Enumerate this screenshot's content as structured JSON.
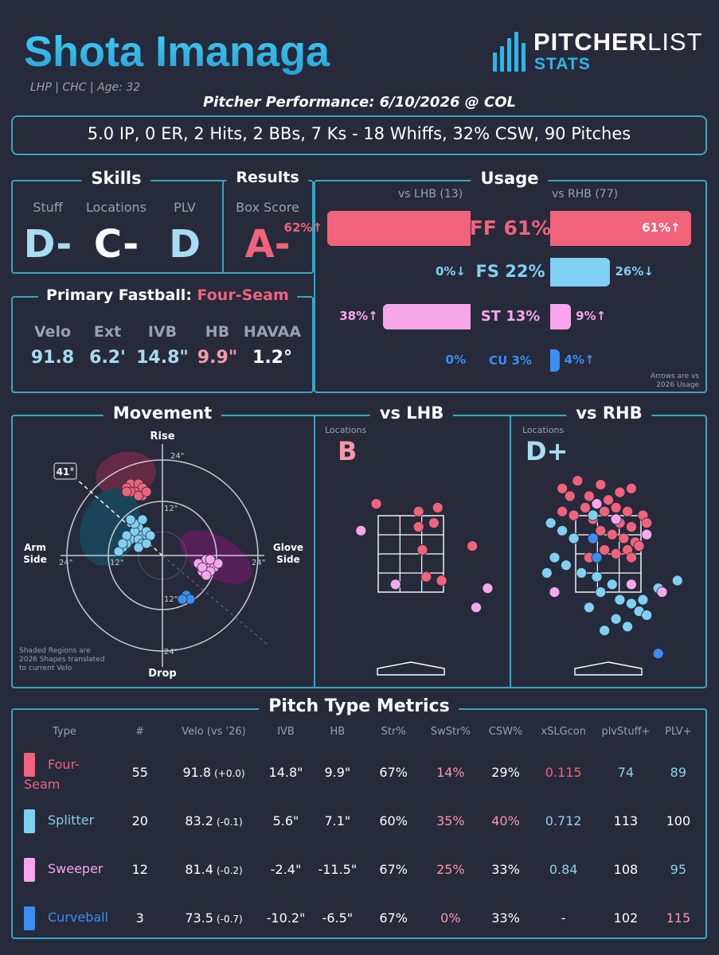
{
  "header": {
    "name": "Shota Imanaga",
    "meta": "LHP | CHC | Age: 32",
    "performance_title": "Pitcher Performance: 6/10/2026 @ COL",
    "summary": "5.0 IP, 0 ER, 2 Hits, 2 BBs, 7 Ks - 18 Whiffs, 32% CSW, 90 Pitches"
  },
  "logo": {
    "brand_a": "PITCHER",
    "brand_b": "LIST",
    "sub": "STATS"
  },
  "skills": {
    "title": "Skills",
    "labels": [
      "Stuff",
      "Locations",
      "PLV"
    ],
    "grades": [
      "D-",
      "C-",
      "D"
    ]
  },
  "results": {
    "title": "Results",
    "label": "Box Score",
    "grade": "A-"
  },
  "primary_fastball": {
    "title": "Primary Fastball:",
    "pitch": "Four-Seam",
    "labels": [
      "Velo",
      "Ext",
      "IVB",
      "HB",
      "HAVAA"
    ],
    "values": [
      "91.8",
      "6.2'",
      "14.8\"",
      "9.9\"",
      "1.2°"
    ]
  },
  "usage": {
    "title": "Usage",
    "lhb_header": "vs LHB (13)",
    "rhb_header": "vs RHB (77)",
    "note_line1": "Arrows are vs",
    "note_line2": "2026 Usage",
    "rows": [
      {
        "label": "FF 61%",
        "lhb": 62,
        "rhb": 61,
        "lhb_text": "62%↑",
        "rhb_text": "61%↑",
        "color": "#f0637a"
      },
      {
        "label": "FS 22%",
        "lhb": 0,
        "rhb": 26,
        "lhb_text": "0%↓",
        "rhb_text": "26%↓",
        "color": "#7fd0f3"
      },
      {
        "label": "ST 13%",
        "lhb": 38,
        "rhb": 9,
        "lhb_text": "38%↑",
        "rhb_text": "9%↑",
        "color": "#f7a6ec"
      },
      {
        "label": "CU 3%",
        "lhb": 0,
        "rhb": 4,
        "lhb_text": "0%",
        "rhb_text": "4%↑",
        "color": "#3a8ff0"
      }
    ]
  },
  "movement": {
    "title": "Movement",
    "rise": "Rise",
    "drop": "Drop",
    "arm_side_1": "Arm",
    "arm_side_2": "Side",
    "glove_side_1": "Glove",
    "glove_side_2": "Side",
    "angle": "41°",
    "tick_outer": "24\"",
    "tick_inner": "12\"",
    "note_1": "Shaded Regions are",
    "note_2": "2026 Shapes translated",
    "note_3": "to current Velo"
  },
  "locations": {
    "lhb_title": "vs LHB",
    "rhb_title": "vs RHB",
    "label": "Locations",
    "lhb_grade": "B",
    "rhb_grade": "D+"
  },
  "metrics": {
    "title": "Pitch Type Metrics",
    "headers": [
      "Type",
      "#",
      "Velo (vs '26)",
      "IVB",
      "HB",
      "Str%",
      "SwStr%",
      "CSW%",
      "xSLGcon",
      "plvStuff+",
      "PLV+"
    ],
    "rows": [
      {
        "type": "Four-Seam",
        "n": "55",
        "velo": "91.8",
        "velo_diff": "(+0.0)",
        "ivb": "14.8\"",
        "hb": "9.9\"",
        "str": "67%",
        "swstr": "14%",
        "csw": "29%",
        "xslg": "0.115",
        "stuff": "74",
        "plv": "89",
        "color": "#f0637a"
      },
      {
        "type": "Splitter",
        "n": "20",
        "velo": "83.2",
        "velo_diff": "(-0.1)",
        "ivb": "5.6\"",
        "hb": "7.1\"",
        "str": "60%",
        "swstr": "35%",
        "csw": "40%",
        "xslg": "0.712",
        "stuff": "113",
        "plv": "100",
        "color": "#7fd0f3"
      },
      {
        "type": "Sweeper",
        "n": "12",
        "velo": "81.4",
        "velo_diff": "(-0.2)",
        "ivb": "-2.4\"",
        "hb": "-11.5\"",
        "str": "67%",
        "swstr": "25%",
        "csw": "33%",
        "xslg": "0.84",
        "stuff": "108",
        "plv": "95",
        "color": "#f7a6ec"
      },
      {
        "type": "Curveball",
        "n": "3",
        "velo": "73.5",
        "velo_diff": "(-0.7)",
        "ivb": "-10.2\"",
        "hb": "-6.5\"",
        "str": "67%",
        "swstr": "0%",
        "csw": "33%",
        "xslg": "-",
        "stuff": "102",
        "plv": "115",
        "color": "#3a8ff0"
      }
    ]
  },
  "colors": {
    "fourseam": "#f0637a",
    "splitter": "#7fd0f3",
    "sweeper": "#f7a6ec",
    "curveball": "#3a8ff0",
    "accent": "#3aa6bd",
    "name_gradient_start": "#33c7f2"
  },
  "chart_data": [
    {
      "type": "bar",
      "title": "Usage",
      "categories": [
        "FF",
        "FS",
        "ST",
        "CU"
      ],
      "series": [
        {
          "name": "vs LHB (13)",
          "values": [
            62,
            0,
            38,
            0
          ]
        },
        {
          "name": "vs RHB (77)",
          "values": [
            61,
            26,
            9,
            4
          ]
        }
      ]
    },
    {
      "type": "scatter",
      "title": "Movement",
      "xlabel": "",
      "ylabel": "",
      "xlim": [
        -30,
        30
      ],
      "ylim": [
        -30,
        30
      ],
      "series": [
        {
          "name": "Four-Seam",
          "points": [
            [
              -6,
              16
            ],
            [
              -7,
              17
            ],
            [
              -8,
              18
            ],
            [
              -6,
              18
            ],
            [
              -5,
              17
            ],
            [
              -9,
              17
            ],
            [
              -7,
              16
            ],
            [
              -5,
              15
            ],
            [
              -8,
              16
            ],
            [
              -6,
              15
            ],
            [
              -4,
              16
            ],
            [
              -9,
              16
            ]
          ]
        },
        {
          "name": "Splitter",
          "points": [
            [
              -6,
              7
            ],
            [
              -7,
              6
            ],
            [
              -5,
              5
            ],
            [
              -8,
              4
            ],
            [
              -6,
              4
            ],
            [
              -9,
              3
            ],
            [
              -4,
              6
            ],
            [
              -7,
              8
            ],
            [
              -5,
              3
            ],
            [
              -10,
              2
            ],
            [
              -9,
              5
            ],
            [
              -6,
              2
            ],
            [
              -3,
              5
            ],
            [
              -8,
              9
            ],
            [
              -5,
              9
            ],
            [
              -11,
              1
            ],
            [
              -4,
              3
            ],
            [
              -10,
              3
            ]
          ]
        },
        {
          "name": "Sweeper",
          "points": [
            [
              10,
              -2
            ],
            [
              11,
              -3
            ],
            [
              12,
              -2
            ],
            [
              10,
              -4
            ],
            [
              13,
              -3
            ],
            [
              11,
              -1
            ],
            [
              9,
              -2
            ],
            [
              12,
              -4
            ],
            [
              14,
              -2
            ],
            [
              10,
              -3
            ],
            [
              11,
              -5
            ],
            [
              12,
              -1
            ]
          ]
        },
        {
          "name": "Curveball",
          "points": [
            [
              6,
              -10
            ],
            [
              7,
              -11
            ],
            [
              5,
              -11
            ]
          ]
        }
      ]
    },
    {
      "type": "scatter",
      "title": "vs LHB",
      "series": [
        {
          "name": "Four-Seam",
          "points": [
            [
              -0.9,
              3.8
            ],
            [
              0.2,
              3.6
            ],
            [
              0.7,
              3.7
            ],
            [
              0.6,
              3.3
            ],
            [
              0.2,
              3.2
            ],
            [
              0.3,
              2.6
            ],
            [
              1.6,
              2.7
            ],
            [
              0.4,
              1.9
            ],
            [
              0.8,
              1.8
            ]
          ]
        },
        {
          "name": "Sweeper",
          "points": [
            [
              -1.3,
              3.1
            ],
            [
              -0.4,
              1.7
            ],
            [
              2.0,
              1.6
            ],
            [
              1.7,
              1.1
            ]
          ]
        }
      ]
    },
    {
      "type": "scatter",
      "title": "vs RHB",
      "series": [
        {
          "name": "Four-Seam",
          "points": [
            [
              -1.2,
              4.2
            ],
            [
              -0.8,
              4.4
            ],
            [
              -0.2,
              4.3
            ],
            [
              0.3,
              4.1
            ],
            [
              0.6,
              4.2
            ],
            [
              -1.0,
              4.0
            ],
            [
              -0.5,
              4.0
            ],
            [
              0.0,
              3.9
            ],
            [
              -0.3,
              3.8
            ],
            [
              -0.6,
              3.7
            ],
            [
              -0.1,
              3.6
            ],
            [
              0.2,
              3.7
            ],
            [
              0.5,
              3.6
            ],
            [
              0.9,
              3.5
            ],
            [
              -1.2,
              3.6
            ],
            [
              -0.9,
              3.5
            ],
            [
              -0.4,
              3.4
            ],
            [
              0.3,
              3.3
            ],
            [
              0.6,
              3.2
            ],
            [
              1.0,
              3.3
            ],
            [
              -0.2,
              3.1
            ],
            [
              0.1,
              3.0
            ],
            [
              0.4,
              2.9
            ],
            [
              0.7,
              2.8
            ],
            [
              0.5,
              2.6
            ],
            [
              0.2,
              2.5
            ],
            [
              -0.1,
              2.6
            ],
            [
              0.8,
              2.7
            ],
            [
              0.6,
              2.4
            ],
            [
              -0.5,
              2.4
            ]
          ]
        },
        {
          "name": "Splitter",
          "points": [
            [
              -1.5,
              3.3
            ],
            [
              -1.2,
              3.1
            ],
            [
              -0.9,
              2.9
            ],
            [
              -1.4,
              2.4
            ],
            [
              -1.1,
              2.2
            ],
            [
              -1.6,
              2.0
            ],
            [
              -0.7,
              2.0
            ],
            [
              -0.3,
              1.9
            ],
            [
              0.1,
              1.7
            ],
            [
              -0.2,
              1.5
            ],
            [
              0.3,
              1.3
            ],
            [
              0.6,
              1.2
            ],
            [
              -0.5,
              1.1
            ],
            [
              0.8,
              1.0
            ],
            [
              1.0,
              0.9
            ],
            [
              0.2,
              0.8
            ],
            [
              0.5,
              0.6
            ],
            [
              -0.1,
              0.5
            ],
            [
              1.3,
              1.6
            ],
            [
              0.9,
              1.3
            ],
            [
              1.8,
              1.8
            ],
            [
              -0.4,
              3.5
            ]
          ]
        },
        {
          "name": "Sweeper",
          "points": [
            [
              -0.3,
              3.8
            ],
            [
              0.2,
              3.4
            ],
            [
              1.0,
              3.0
            ],
            [
              -1.4,
              1.5
            ],
            [
              0.6,
              1.7
            ],
            [
              1.4,
              1.5
            ]
          ]
        },
        {
          "name": "Curveball",
          "points": [
            [
              -0.4,
              2.9
            ],
            [
              -0.3,
              2.4
            ],
            [
              1.3,
              -0.1
            ]
          ]
        }
      ]
    }
  ]
}
